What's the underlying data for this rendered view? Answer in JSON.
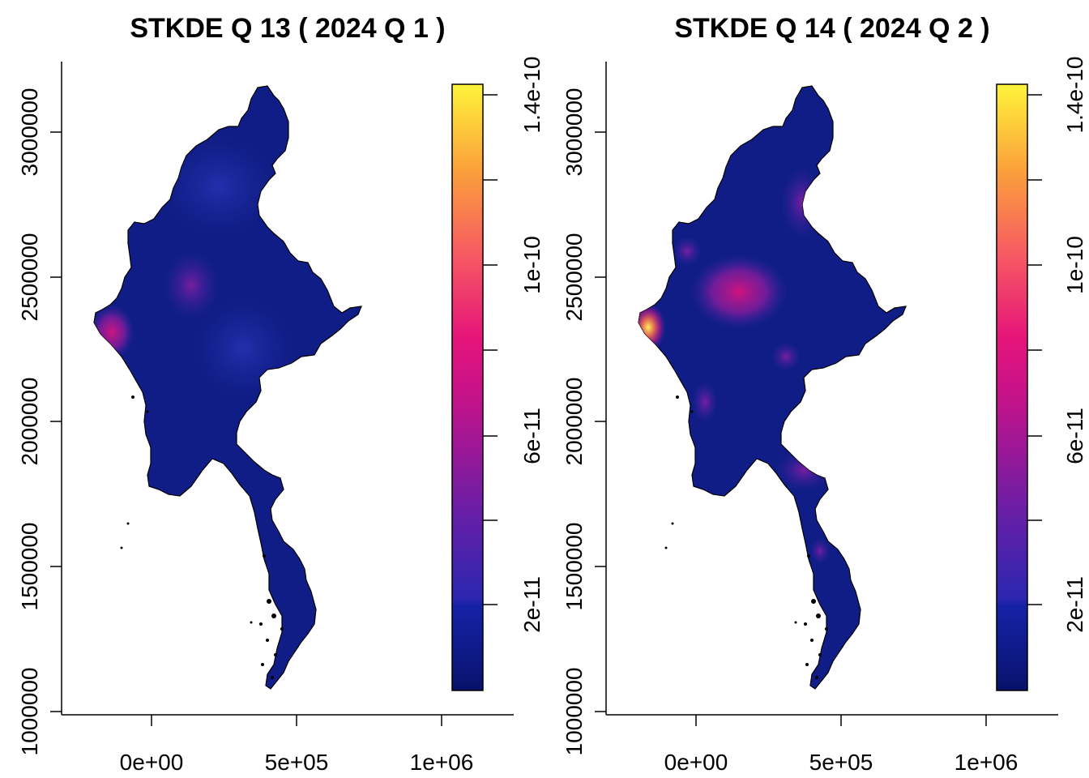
{
  "maps": [
    {
      "title": "STKDE Q 13 ( 2024 Q 1 )",
      "x_ticks": [
        "0e+00",
        "5e+05",
        "1e+06"
      ],
      "y_ticks": [
        "1000000",
        "1500000",
        "2000000",
        "2500000",
        "3000000"
      ],
      "legend_ticks": [
        "2e-11",
        "6e-11",
        "1e-10",
        "1.4e-10"
      ],
      "colors": {
        "low": "#0d1a7a",
        "mid": "#e0127a",
        "high": "#ffff40"
      }
    },
    {
      "title": "STKDE Q 14 ( 2024 Q 2 )",
      "x_ticks": [
        "0e+00",
        "5e+05",
        "1e+06"
      ],
      "y_ticks": [
        "1000000",
        "1500000",
        "2000000",
        "2500000",
        "3000000"
      ],
      "legend_ticks": [
        "2e-11",
        "6e-11",
        "1e-10",
        "1.4e-10"
      ],
      "colors": {
        "low": "#0d1a7a",
        "mid": "#e0127a",
        "high": "#ffff40"
      }
    }
  ]
}
